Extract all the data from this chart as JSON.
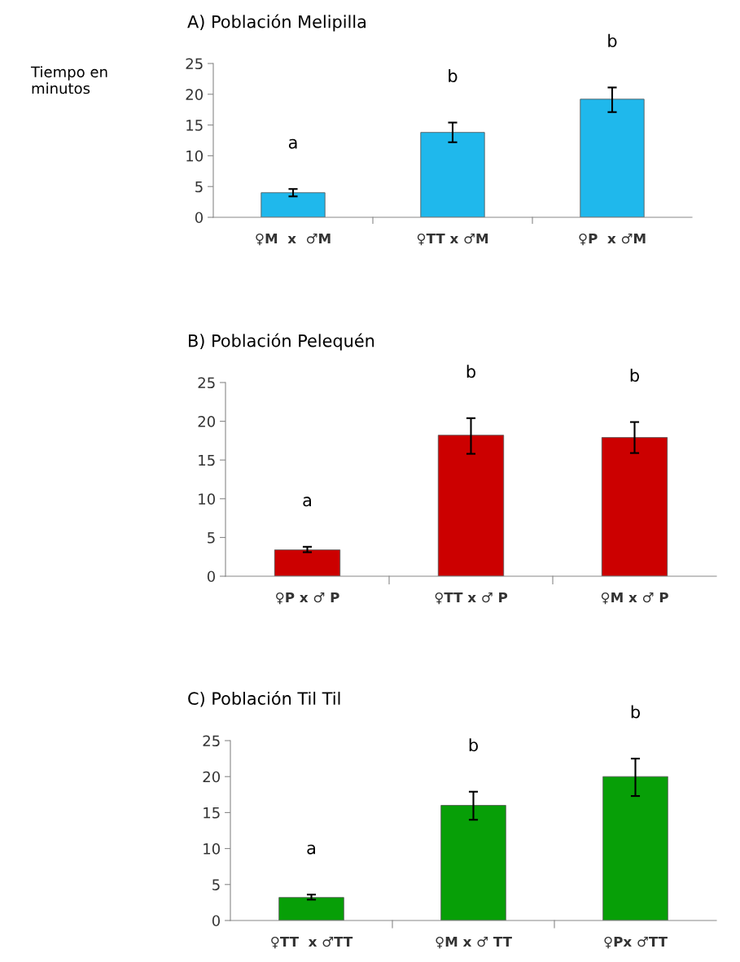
{
  "chart_data": [
    {
      "type": "bar",
      "title": "A) Población Melipilla",
      "ylabel": "Tiempo en\nminutos",
      "categories": [
        "♀M  x  ♂M",
        "♀TT x ♂M",
        "♀P  x ♂M"
      ],
      "values": [
        4.0,
        13.8,
        19.2
      ],
      "errors": [
        [
          3.4,
          4.6
        ],
        [
          12.2,
          15.4
        ],
        [
          17.1,
          21.1
        ]
      ],
      "color": "#1fb8ec",
      "ylim": [
        0,
        25
      ],
      "yticks": [
        0,
        5,
        10,
        15,
        20,
        25
      ],
      "grid": false,
      "annotations": [
        "a",
        "b",
        "b"
      ]
    },
    {
      "type": "bar",
      "title": "B) Población Pelequén",
      "categories": [
        "♀P x ♂ P",
        "♀TT x ♂ P",
        "♀M x ♂ P"
      ],
      "values": [
        3.4,
        18.2,
        17.9
      ],
      "errors": [
        [
          3.1,
          3.8
        ],
        [
          15.8,
          20.4
        ],
        [
          15.9,
          19.9
        ]
      ],
      "color": "#cc0000",
      "ylim": [
        0,
        25
      ],
      "yticks": [
        0,
        5,
        10,
        15,
        20,
        25
      ],
      "grid": false,
      "annotations": [
        "a",
        "b",
        "b"
      ]
    },
    {
      "type": "bar",
      "title": "C) Población Til Til",
      "categories": [
        "♀TT  x ♂TT",
        "♀M x ♂ TT",
        "♀Px ♂TT"
      ],
      "values": [
        3.2,
        16.0,
        20.0
      ],
      "errors": [
        [
          2.9,
          3.6
        ],
        [
          14.0,
          17.9
        ],
        [
          17.3,
          22.5
        ]
      ],
      "color": "#079f07",
      "ylim": [
        0,
        25
      ],
      "yticks": [
        0,
        5,
        10,
        15,
        20,
        25
      ],
      "grid": false,
      "annotations": [
        "a",
        "b",
        "b"
      ]
    }
  ]
}
